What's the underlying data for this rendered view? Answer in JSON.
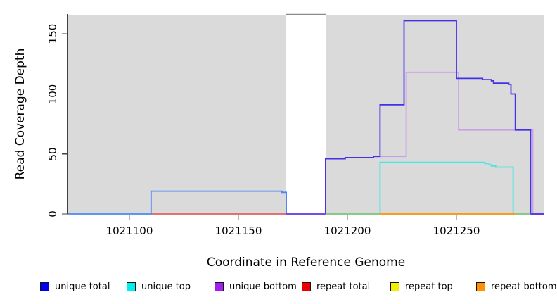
{
  "chart_data": {
    "type": "line",
    "subtype": "step-coverage",
    "title": "",
    "xlabel": "Coordinate in Reference Genome",
    "ylabel": "Read Coverage Depth",
    "xlim": [
      1021072,
      1021290
    ],
    "ylim": [
      0,
      166
    ],
    "grid": false,
    "legend_position": "bottom",
    "x_ticks": [
      "1021100",
      "1021150",
      "1021200",
      "1021250"
    ],
    "x_tick_values": [
      1021100,
      1021150,
      1021200,
      1021250
    ],
    "y_ticks": [
      "0",
      "50",
      "100",
      "150"
    ],
    "y_tick_values": [
      0,
      50,
      100,
      150
    ],
    "plot_bg_color": "#dadada",
    "axis_color": "#404040",
    "repeat_region_band": {
      "from": 1021172,
      "to": 1021190,
      "fill": "#ffffff",
      "top_clip_line_color": "#8a8a8a"
    },
    "series": [
      {
        "name": "unique total",
        "legend_color": "#0000ee",
        "parts": [
          {
            "color": "#4e86f7",
            "points": [
              [
                1021072,
                0
              ],
              [
                1021110,
                0
              ],
              [
                1021110,
                19
              ],
              [
                1021170,
                19
              ],
              [
                1021170,
                18
              ],
              [
                1021172,
                18
              ],
              [
                1021172,
                0
              ]
            ]
          },
          {
            "color": "#4430e8",
            "points": [
              [
                1021190,
                0
              ],
              [
                1021190,
                46
              ],
              [
                1021199,
                46
              ],
              [
                1021199,
                47
              ],
              [
                1021212,
                47
              ],
              [
                1021212,
                48
              ],
              [
                1021215,
                48
              ],
              [
                1021215,
                91
              ],
              [
                1021226,
                91
              ],
              [
                1021226,
                161
              ],
              [
                1021250,
                161
              ],
              [
                1021250,
                113
              ],
              [
                1021262,
                113
              ],
              [
                1021262,
                112
              ],
              [
                1021266,
                112
              ],
              [
                1021266,
                111
              ],
              [
                1021267,
                111
              ],
              [
                1021267,
                109
              ],
              [
                1021274,
                109
              ],
              [
                1021274,
                108
              ],
              [
                1021275,
                108
              ],
              [
                1021275,
                100
              ],
              [
                1021277,
                100
              ],
              [
                1021277,
                70
              ],
              [
                1021284,
                70
              ],
              [
                1021284,
                0
              ],
              [
                1021290,
                0
              ]
            ]
          }
        ]
      },
      {
        "name": "unique top",
        "legend_color": "#00eeee",
        "parts": [
          {
            "color": "#45e6e6",
            "points": [
              [
                1021215,
                0
              ],
              [
                1021215,
                43
              ],
              [
                1021263,
                43
              ],
              [
                1021263,
                42
              ],
              [
                1021265,
                42
              ],
              [
                1021265,
                41
              ],
              [
                1021266,
                41
              ],
              [
                1021266,
                40
              ],
              [
                1021268,
                40
              ],
              [
                1021268,
                39
              ],
              [
                1021276,
                39
              ],
              [
                1021276,
                0
              ]
            ]
          }
        ]
      },
      {
        "name": "unique bottom",
        "legend_color": "#a020f0",
        "parts": [
          {
            "color": "#c9a0e8",
            "points": [
              [
                1021190,
                0
              ],
              [
                1021190,
                46
              ],
              [
                1021199,
                46
              ],
              [
                1021199,
                47
              ],
              [
                1021212,
                47
              ],
              [
                1021212,
                48
              ],
              [
                1021227,
                48
              ],
              [
                1021227,
                118
              ],
              [
                1021251,
                118
              ],
              [
                1021251,
                70
              ],
              [
                1021285,
                70
              ],
              [
                1021285,
                0
              ]
            ]
          }
        ]
      },
      {
        "name": "repeat total",
        "legend_color": "#ee0000",
        "parts": [
          {
            "color": "#e06060",
            "points": [
              [
                1021110,
                0
              ],
              [
                1021172,
                0
              ]
            ]
          }
        ]
      },
      {
        "name": "repeat top",
        "legend_color": "#f0f000",
        "parts": []
      },
      {
        "name": "repeat bottom",
        "legend_color": "#ff9100",
        "parts": [
          {
            "color": "#ff9100",
            "points": [
              [
                1021215,
                0
              ],
              [
                1021277,
                0
              ]
            ]
          }
        ]
      }
    ],
    "baseline_overlays": [
      {
        "color": "#5b35e8",
        "from": 1021172,
        "to": 1021190
      },
      {
        "color": "#7ac47a",
        "from": 1021190,
        "to": 1021215
      },
      {
        "color": "#7ac47a",
        "from": 1021277,
        "to": 1021284
      },
      {
        "color": "#5b35e8",
        "from": 1021284,
        "to": 1021290
      }
    ]
  },
  "legend": {
    "items": [
      {
        "label": "unique total",
        "color": "#0000ee"
      },
      {
        "label": "unique top",
        "color": "#00eeee"
      },
      {
        "label": "unique bottom",
        "color": "#a020f0"
      },
      {
        "label": "repeat total",
        "color": "#ee0000"
      },
      {
        "label": "repeat top",
        "color": "#f0f000"
      },
      {
        "label": "repeat bottom",
        "color": "#ff9100"
      }
    ]
  }
}
